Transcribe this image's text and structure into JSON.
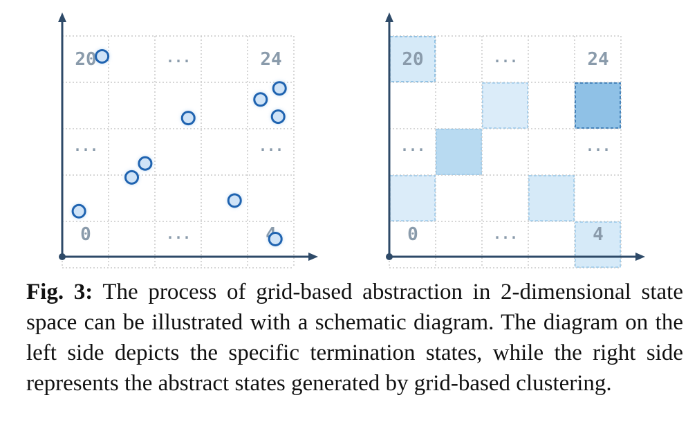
{
  "left_panel": {
    "labels": {
      "top_left": "20",
      "top_right": "24",
      "bottom_left": "0",
      "bottom_right": "4",
      "ellipsis_top": "...",
      "ellipsis_bottom": "...",
      "ellipsis_left": "...",
      "ellipsis_right": "..."
    },
    "termination_states": [
      {
        "x": 0.86,
        "y": 4.56
      },
      {
        "x": 0.36,
        "y": 1.22
      },
      {
        "x": 1.5,
        "y": 1.95
      },
      {
        "x": 1.79,
        "y": 2.25
      },
      {
        "x": 2.72,
        "y": 3.23
      },
      {
        "x": 3.72,
        "y": 1.45
      },
      {
        "x": 4.28,
        "y": 3.63
      },
      {
        "x": 4.69,
        "y": 3.87
      },
      {
        "x": 4.66,
        "y": 3.26
      },
      {
        "x": 4.6,
        "y": 0.62
      }
    ]
  },
  "right_panel": {
    "labels": {
      "top_left": "20",
      "top_right": "24",
      "bottom_left": "0",
      "bottom_right": "4",
      "ellipsis_top": "...",
      "ellipsis_bottom": "...",
      "ellipsis_left": "...",
      "ellipsis_right": "..."
    },
    "abstract_states": [
      {
        "col": 0,
        "row": 4,
        "shade": "#d6eaf8",
        "border": "#7fb8e0"
      },
      {
        "col": 2,
        "row": 3,
        "shade": "#dbecf9",
        "border": "#9ccaea"
      },
      {
        "col": 4,
        "row": 3,
        "shade": "#8fc1e6",
        "border": "#2c6fae"
      },
      {
        "col": 1,
        "row": 2,
        "shade": "#b8daf1",
        "border": "#9ccaea"
      },
      {
        "col": 0,
        "row": 1,
        "shade": "#dbecf9",
        "border": "#9ccaea"
      },
      {
        "col": 3,
        "row": 1,
        "shade": "#d6eaf8",
        "border": "#9ccaea"
      },
      {
        "col": 4,
        "row": 0,
        "shade": "#d6eaf8",
        "border": "#9ccaea"
      }
    ]
  },
  "caption": {
    "label": "Fig. 3:",
    "text": " The process of grid-based abstraction in 2-dimensional state space can be illustrated with a schematic diagram. The diagram on the left side depicts the specific termination states, while the right side represents the abstract states generated by grid-based clustering."
  },
  "colors": {
    "axis": "#2e4a68",
    "grid": "#c9c9c9",
    "point_stroke": "#1f63b0",
    "point_fill": "#cfe3f7",
    "label": "#8a9bab"
  }
}
